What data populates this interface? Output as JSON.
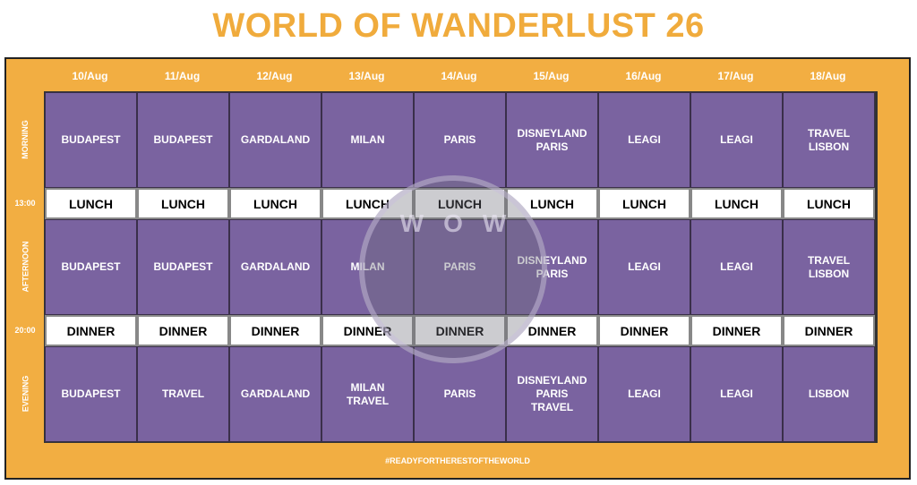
{
  "title": "WORLD OF WANDERLUST 26",
  "dates": [
    "10/Aug",
    "11/Aug",
    "12/Aug",
    "13/Aug",
    "14/Aug",
    "15/Aug",
    "16/Aug",
    "17/Aug",
    "18/Aug"
  ],
  "side": {
    "morning": "MORNING",
    "lunch_time": "13:00",
    "afternoon": "AFTERNOON",
    "dinner_time": "20:00",
    "evening": "EVENING"
  },
  "morning": [
    "BUDAPEST",
    "BUDAPEST",
    "GARDALAND",
    "MILAN",
    "PARIS",
    "DISNEYLAND\nPARIS",
    "LEAGI",
    "LEAGI",
    "TRAVEL\nLISBON"
  ],
  "lunch": [
    "LUNCH",
    "LUNCH",
    "LUNCH",
    "LUNCH",
    "LUNCH",
    "LUNCH",
    "LUNCH",
    "LUNCH",
    "LUNCH"
  ],
  "afternoon": [
    "BUDAPEST",
    "BUDAPEST",
    "GARDALAND",
    "MILAN",
    "PARIS",
    "DISNEYLAND\nPARIS",
    "LEAGI",
    "LEAGI",
    "TRAVEL\nLISBON"
  ],
  "dinner": [
    "DINNER",
    "DINNER",
    "DINNER",
    "DINNER",
    "DINNER",
    "DINNER",
    "DINNER",
    "DINNER",
    "DINNER"
  ],
  "evening": [
    "BUDAPEST",
    "TRAVEL",
    "GARDALAND",
    "MILAN\nTRAVEL",
    "PARIS",
    "DISNEYLAND\nPARIS\nTRAVEL",
    "LEAGI",
    "LEAGI",
    "LISBON"
  ],
  "footer": "#READYFORTHERESTOFTHEWORLD",
  "logo_text": "WOW",
  "colors": {
    "orange": "#f2ae42",
    "purple": "#7a63a0",
    "title": "#f0ab3c"
  }
}
